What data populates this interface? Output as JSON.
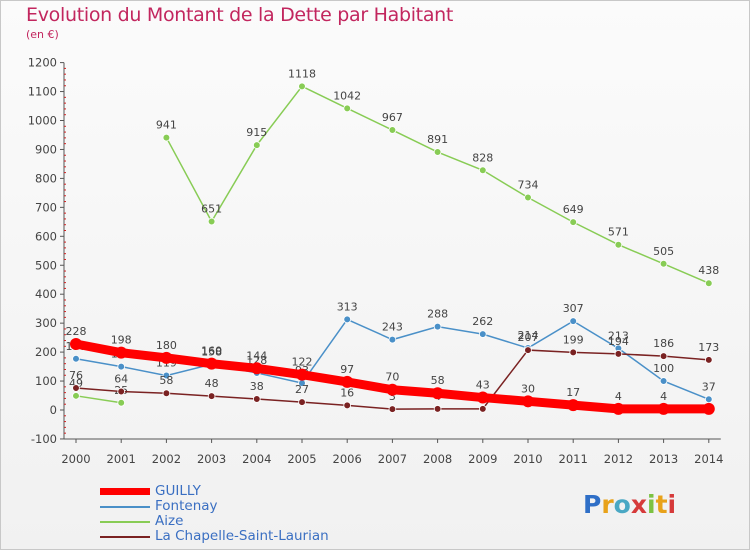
{
  "header": {
    "title": "Evolution du Montant de la Dette par Habitant",
    "unit": "(en €)"
  },
  "logo": {
    "letters": [
      "P",
      "r",
      "o",
      "x",
      "i",
      "t",
      "i"
    ],
    "colors": [
      "#2f6fc7",
      "#e8a21a",
      "#4aa8c4",
      "#d63a3a",
      "#7cc242",
      "#e8a21a",
      "#d63a3a"
    ]
  },
  "chart_data": {
    "type": "line",
    "title": "Evolution du Montant de la Dette par Habitant",
    "ylabel": "(en €)",
    "xlabel": "",
    "ylim": [
      -100,
      1200
    ],
    "yticks": [
      -100,
      0,
      100,
      200,
      300,
      400,
      500,
      600,
      700,
      800,
      900,
      1000,
      1100,
      1200
    ],
    "categories": [
      "2000",
      "2001",
      "2002",
      "2003",
      "2004",
      "2005",
      "2006",
      "2007",
      "2008",
      "2009",
      "2010",
      "2011",
      "2012",
      "2013",
      "2014"
    ],
    "grid": false,
    "legend_position": "bottom-left",
    "series": [
      {
        "name": "GUILLY",
        "color": "#ff0000",
        "values": [
          228,
          198,
          180,
          160,
          144,
          122,
          97,
          70,
          58,
          43,
          30,
          17,
          4,
          4,
          4
        ],
        "labels": [
          "228",
          "198",
          "180",
          "160",
          "144",
          "122",
          "97",
          "70",
          "58",
          "43",
          "30",
          "17",
          "4",
          "4",
          ""
        ]
      },
      {
        "name": "Fontenay",
        "color": "#4a90c8",
        "values": [
          177,
          150,
          119,
          158,
          128,
          93,
          313,
          243,
          288,
          262,
          214,
          307,
          213,
          100,
          37
        ],
        "labels": [
          "177",
          "150",
          "119",
          "158",
          "128",
          "93",
          "313",
          "243",
          "288",
          "262",
          "214",
          "307",
          "213",
          "100",
          "37"
        ]
      },
      {
        "name": "Aize",
        "color": "#88cc55",
        "values": [
          49,
          25,
          941,
          651,
          915,
          1118,
          1042,
          967,
          891,
          828,
          734,
          649,
          571,
          505,
          438
        ],
        "labels": [
          "49",
          "25",
          "941",
          "651",
          "915",
          "1118",
          "1042",
          "967",
          "891",
          "828",
          "734",
          "649",
          "571",
          "505",
          "438"
        ]
      },
      {
        "name": "La Chapelle-Saint-Laurian",
        "color": "#7a2222",
        "values": [
          76,
          64,
          58,
          48,
          38,
          27,
          16,
          3,
          4,
          4,
          207,
          199,
          194,
          186,
          173
        ],
        "labels": [
          "76",
          "64",
          "58",
          "48",
          "38",
          "27",
          "16",
          "3",
          "4",
          "4",
          "207",
          "199",
          "194",
          "186",
          "173"
        ]
      }
    ]
  }
}
